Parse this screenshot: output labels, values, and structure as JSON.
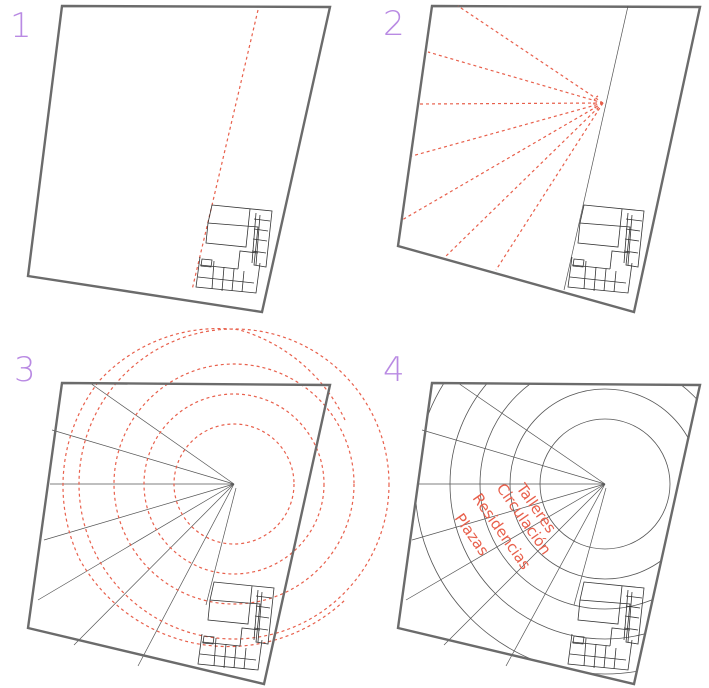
{
  "colors": {
    "step_number": "#b98ae3",
    "outline": "#6b6b6b",
    "guide_red": "#e8604c",
    "thin_line": "#555555",
    "building": "#333333"
  },
  "panels": [
    {
      "step": "1"
    },
    {
      "step": "2"
    },
    {
      "step": "3"
    },
    {
      "step": "4"
    }
  ],
  "ring_labels": [
    "Talleres",
    "Circulación",
    "Residencias",
    "Plazas"
  ]
}
